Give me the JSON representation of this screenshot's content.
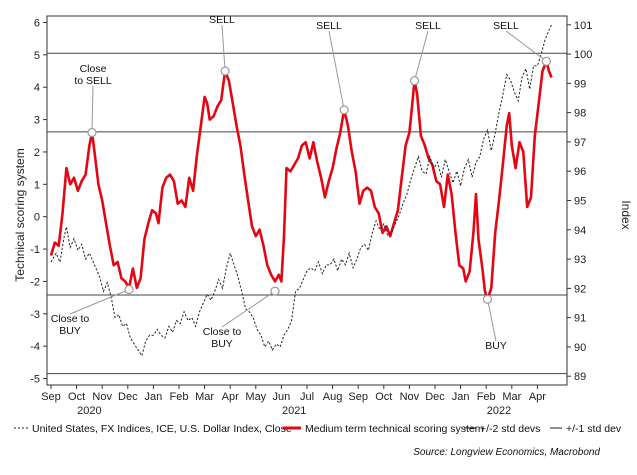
{
  "chart_data": {
    "type": "line",
    "y_left_label": "Technical scoring system",
    "y_right_label": "Index",
    "y_left_ticks": [
      "-5",
      "-4",
      "-3",
      "-2",
      "-1",
      "0",
      "1",
      "2",
      "3",
      "4",
      "5",
      "6"
    ],
    "y_right_ticks": [
      "89",
      "90",
      "91",
      "92",
      "93",
      "94",
      "95",
      "96",
      "97",
      "98",
      "99",
      "100",
      "101"
    ],
    "ylim_left": [
      -5.2,
      6.2
    ],
    "ylim_right": [
      88.7,
      101.3
    ],
    "x_month_labels": [
      "Sep",
      "Oct",
      "Nov",
      "Dec",
      "Jan",
      "Feb",
      "Mar",
      "Apr",
      "May",
      "Jun",
      "Jul",
      "Aug",
      "Sep",
      "Oct",
      "Nov",
      "Dec",
      "Jan",
      "Feb",
      "Mar",
      "Apr"
    ],
    "x_year_labels": [
      {
        "label": "2020",
        "month_index": 1.5
      },
      {
        "label": "2021",
        "month_index": 9.5
      },
      {
        "label": "2022",
        "month_index": 17.5
      }
    ],
    "hlines": [
      {
        "y": 5.05,
        "kind": "+2 std dev"
      },
      {
        "y": 2.62,
        "kind": "+1 std dev"
      },
      {
        "y": -2.42,
        "kind": "-1 std dev"
      },
      {
        "y": -4.85,
        "kind": "-2 std dev"
      }
    ],
    "series": [
      {
        "name": "Medium term technical scoring system",
        "color": "#e30613",
        "axis": "left",
        "points": [
          [
            0.0,
            -1.2
          ],
          [
            0.15,
            -0.8
          ],
          [
            0.3,
            -0.9
          ],
          [
            0.45,
            0.1
          ],
          [
            0.6,
            1.5
          ],
          [
            0.75,
            1.0
          ],
          [
            0.9,
            1.2
          ],
          [
            1.05,
            0.8
          ],
          [
            1.2,
            1.1
          ],
          [
            1.35,
            1.3
          ],
          [
            1.5,
            2.2
          ],
          [
            1.6,
            2.6
          ],
          [
            1.7,
            2.0
          ],
          [
            1.85,
            1.0
          ],
          [
            2.0,
            0.5
          ],
          [
            2.15,
            -0.2
          ],
          [
            2.3,
            -0.9
          ],
          [
            2.45,
            -1.5
          ],
          [
            2.6,
            -1.4
          ],
          [
            2.75,
            -1.9
          ],
          [
            2.9,
            -2.0
          ],
          [
            3.05,
            -2.2
          ],
          [
            3.2,
            -1.6
          ],
          [
            3.35,
            -2.2
          ],
          [
            3.5,
            -1.9
          ],
          [
            3.65,
            -0.7
          ],
          [
            3.8,
            -0.2
          ],
          [
            3.95,
            0.2
          ],
          [
            4.1,
            0.1
          ],
          [
            4.2,
            -0.2
          ],
          [
            4.35,
            0.9
          ],
          [
            4.5,
            1.2
          ],
          [
            4.65,
            1.3
          ],
          [
            4.8,
            1.1
          ],
          [
            4.95,
            0.4
          ],
          [
            5.1,
            0.5
          ],
          [
            5.25,
            0.3
          ],
          [
            5.4,
            1.2
          ],
          [
            5.55,
            0.8
          ],
          [
            5.7,
            1.9
          ],
          [
            5.85,
            2.8
          ],
          [
            6.0,
            3.7
          ],
          [
            6.1,
            3.5
          ],
          [
            6.2,
            3.0
          ],
          [
            6.35,
            3.1
          ],
          [
            6.5,
            3.4
          ],
          [
            6.65,
            3.6
          ],
          [
            6.8,
            4.5
          ],
          [
            6.95,
            4.2
          ],
          [
            7.1,
            3.5
          ],
          [
            7.25,
            2.8
          ],
          [
            7.4,
            2.2
          ],
          [
            7.55,
            1.3
          ],
          [
            7.7,
            0.5
          ],
          [
            7.85,
            -0.3
          ],
          [
            8.0,
            -0.6
          ],
          [
            8.15,
            -0.4
          ],
          [
            8.3,
            -0.9
          ],
          [
            8.45,
            -1.5
          ],
          [
            8.6,
            -1.8
          ],
          [
            8.75,
            -2.0
          ],
          [
            8.9,
            -1.8
          ],
          [
            9.0,
            -2.0
          ],
          [
            9.1,
            -0.6
          ],
          [
            9.2,
            1.5
          ],
          [
            9.35,
            1.4
          ],
          [
            9.5,
            1.6
          ],
          [
            9.65,
            1.8
          ],
          [
            9.8,
            2.2
          ],
          [
            9.95,
            2.3
          ],
          [
            10.1,
            1.8
          ],
          [
            10.25,
            2.3
          ],
          [
            10.4,
            1.7
          ],
          [
            10.55,
            1.2
          ],
          [
            10.7,
            0.6
          ],
          [
            10.85,
            1.1
          ],
          [
            11.0,
            1.5
          ],
          [
            11.15,
            2.1
          ],
          [
            11.3,
            2.6
          ],
          [
            11.45,
            3.3
          ],
          [
            11.6,
            2.8
          ],
          [
            11.75,
            2.0
          ],
          [
            11.9,
            1.4
          ],
          [
            12.05,
            0.4
          ],
          [
            12.2,
            0.8
          ],
          [
            12.35,
            0.9
          ],
          [
            12.5,
            0.8
          ],
          [
            12.65,
            0.3
          ],
          [
            12.8,
            0.1
          ],
          [
            12.95,
            -0.5
          ],
          [
            13.1,
            -0.3
          ],
          [
            13.25,
            -0.6
          ],
          [
            13.4,
            -0.2
          ],
          [
            13.55,
            0.2
          ],
          [
            13.7,
            1.2
          ],
          [
            13.85,
            2.2
          ],
          [
            14.0,
            2.6
          ],
          [
            14.1,
            3.4
          ],
          [
            14.2,
            4.2
          ],
          [
            14.3,
            3.8
          ],
          [
            14.45,
            2.5
          ],
          [
            14.6,
            2.2
          ],
          [
            14.75,
            1.8
          ],
          [
            14.9,
            1.6
          ],
          [
            15.05,
            1.1
          ],
          [
            15.2,
            1.0
          ],
          [
            15.35,
            0.3
          ],
          [
            15.5,
            1.3
          ],
          [
            15.65,
            0.7
          ],
          [
            15.8,
            -0.5
          ],
          [
            15.95,
            -1.5
          ],
          [
            16.1,
            -1.6
          ],
          [
            16.2,
            -2.0
          ],
          [
            16.35,
            -1.7
          ],
          [
            16.5,
            -0.5
          ],
          [
            16.6,
            0.7
          ],
          [
            16.7,
            -0.7
          ],
          [
            16.85,
            -1.6
          ],
          [
            16.95,
            -2.3
          ],
          [
            17.05,
            -2.55
          ],
          [
            17.2,
            -2.2
          ],
          [
            17.35,
            -0.5
          ],
          [
            17.5,
            0.5
          ],
          [
            17.65,
            1.6
          ],
          [
            17.8,
            2.8
          ],
          [
            17.9,
            3.2
          ],
          [
            18.0,
            2.2
          ],
          [
            18.15,
            1.5
          ],
          [
            18.3,
            2.3
          ],
          [
            18.45,
            2.0
          ],
          [
            18.6,
            0.3
          ],
          [
            18.75,
            0.6
          ],
          [
            18.9,
            2.5
          ],
          [
            19.05,
            3.5
          ],
          [
            19.2,
            4.5
          ],
          [
            19.35,
            4.8
          ],
          [
            19.45,
            4.5
          ],
          [
            19.55,
            4.3
          ]
        ]
      },
      {
        "name": "United States, FX Indices, ICE, U.S. Dollar Index, Close",
        "color": "#222222",
        "axis": "right",
        "points": [
          [
            0.0,
            92.9
          ],
          [
            0.2,
            93.2
          ],
          [
            0.35,
            92.9
          ],
          [
            0.5,
            93.7
          ],
          [
            0.6,
            94.1
          ],
          [
            0.75,
            93.4
          ],
          [
            0.9,
            93.7
          ],
          [
            1.05,
            93.3
          ],
          [
            1.2,
            93.5
          ],
          [
            1.35,
            93.0
          ],
          [
            1.5,
            93.2
          ],
          [
            1.7,
            92.8
          ],
          [
            1.9,
            92.4
          ],
          [
            2.05,
            91.9
          ],
          [
            2.2,
            92.2
          ],
          [
            2.35,
            91.7
          ],
          [
            2.5,
            91.0
          ],
          [
            2.65,
            91.1
          ],
          [
            2.8,
            90.7
          ],
          [
            2.95,
            90.8
          ],
          [
            3.1,
            90.3
          ],
          [
            3.25,
            90.1
          ],
          [
            3.4,
            89.9
          ],
          [
            3.55,
            89.7
          ],
          [
            3.7,
            90.2
          ],
          [
            3.85,
            90.4
          ],
          [
            4.0,
            90.4
          ],
          [
            4.15,
            90.6
          ],
          [
            4.3,
            90.4
          ],
          [
            4.45,
            90.3
          ],
          [
            4.6,
            90.7
          ],
          [
            4.75,
            90.5
          ],
          [
            4.9,
            90.9
          ],
          [
            5.05,
            90.8
          ],
          [
            5.2,
            91.2
          ],
          [
            5.35,
            90.9
          ],
          [
            5.5,
            91.0
          ],
          [
            5.65,
            90.7
          ],
          [
            5.8,
            91.2
          ],
          [
            5.95,
            91.5
          ],
          [
            6.1,
            91.8
          ],
          [
            6.25,
            91.6
          ],
          [
            6.4,
            91.9
          ],
          [
            6.55,
            92.3
          ],
          [
            6.7,
            92.0
          ],
          [
            6.85,
            92.7
          ],
          [
            7.0,
            93.2
          ],
          [
            7.15,
            92.8
          ],
          [
            7.3,
            92.4
          ],
          [
            7.45,
            91.9
          ],
          [
            7.6,
            91.3
          ],
          [
            7.75,
            91.2
          ],
          [
            7.9,
            91.0
          ],
          [
            8.05,
            90.6
          ],
          [
            8.2,
            90.4
          ],
          [
            8.35,
            90.0
          ],
          [
            8.5,
            90.2
          ],
          [
            8.65,
            89.9
          ],
          [
            8.8,
            90.1
          ],
          [
            8.95,
            90.0
          ],
          [
            9.1,
            90.4
          ],
          [
            9.25,
            90.6
          ],
          [
            9.4,
            90.9
          ],
          [
            9.55,
            91.9
          ],
          [
            9.7,
            92.0
          ],
          [
            9.85,
            92.3
          ],
          [
            10.0,
            92.6
          ],
          [
            10.15,
            92.7
          ],
          [
            10.3,
            92.6
          ],
          [
            10.45,
            92.9
          ],
          [
            10.6,
            92.5
          ],
          [
            10.75,
            92.8
          ],
          [
            10.9,
            92.8
          ],
          [
            11.05,
            93.0
          ],
          [
            11.2,
            92.6
          ],
          [
            11.35,
            93.0
          ],
          [
            11.5,
            92.8
          ],
          [
            11.65,
            93.2
          ],
          [
            11.8,
            92.7
          ],
          [
            11.95,
            93.0
          ],
          [
            12.1,
            93.4
          ],
          [
            12.25,
            93.5
          ],
          [
            12.4,
            93.3
          ],
          [
            12.55,
            93.9
          ],
          [
            12.7,
            94.3
          ],
          [
            12.85,
            94.0
          ],
          [
            13.0,
            94.2
          ],
          [
            13.15,
            93.8
          ],
          [
            13.3,
            93.9
          ],
          [
            13.45,
            94.2
          ],
          [
            13.6,
            94.5
          ],
          [
            13.75,
            94.9
          ],
          [
            13.9,
            95.2
          ],
          [
            14.05,
            95.7
          ],
          [
            14.2,
            96.1
          ],
          [
            14.35,
            96.5
          ],
          [
            14.5,
            96.0
          ],
          [
            14.65,
            95.9
          ],
          [
            14.8,
            96.5
          ],
          [
            14.95,
            96.1
          ],
          [
            15.1,
            96.3
          ],
          [
            15.25,
            95.8
          ],
          [
            15.4,
            96.4
          ],
          [
            15.55,
            96.0
          ],
          [
            15.7,
            95.6
          ],
          [
            15.85,
            96.0
          ],
          [
            16.0,
            95.5
          ],
          [
            16.15,
            96.1
          ],
          [
            16.3,
            96.4
          ],
          [
            16.45,
            95.8
          ],
          [
            16.6,
            96.3
          ],
          [
            16.75,
            96.5
          ],
          [
            16.9,
            97.1
          ],
          [
            17.05,
            97.4
          ],
          [
            17.2,
            96.7
          ],
          [
            17.35,
            97.3
          ],
          [
            17.5,
            98.0
          ],
          [
            17.65,
            98.6
          ],
          [
            17.8,
            99.3
          ],
          [
            17.95,
            99.1
          ],
          [
            18.1,
            98.7
          ],
          [
            18.25,
            98.4
          ],
          [
            18.4,
            99.2
          ],
          [
            18.55,
            99.5
          ],
          [
            18.7,
            98.8
          ],
          [
            18.85,
            99.6
          ],
          [
            19.0,
            99.6
          ],
          [
            19.15,
            100.0
          ],
          [
            19.3,
            100.5
          ],
          [
            19.45,
            100.8
          ],
          [
            19.55,
            101.0
          ]
        ]
      }
    ],
    "annotations": [
      {
        "lines": [
          "Close",
          "to SELL"
        ],
        "x": 1.6,
        "y": 2.6
      },
      {
        "lines": [
          "SELL"
        ],
        "x": 6.8,
        "y": 4.5
      },
      {
        "lines": [
          "SELL"
        ],
        "x": 11.45,
        "y": 3.3
      },
      {
        "lines": [
          "SELL"
        ],
        "x": 14.2,
        "y": 4.2
      },
      {
        "lines": [
          "SELL"
        ],
        "x": 19.35,
        "y": 4.8
      },
      {
        "lines": [
          "Close to",
          "BUY"
        ],
        "x": 3.05,
        "y": -2.25
      },
      {
        "lines": [
          "Close to",
          "BUY"
        ],
        "x": 8.75,
        "y": -2.3
      },
      {
        "lines": [
          "BUY"
        ],
        "x": 17.05,
        "y": -2.55
      }
    ],
    "legend": [
      {
        "label": "United States, FX Indices, ICE, U.S. Dollar Index, Close",
        "style": "dashed",
        "color": "#222222"
      },
      {
        "label": "Medium term technical scoring system",
        "style": "thick",
        "color": "#e30613"
      },
      {
        "label": "+/-2 std devs",
        "style": "thin",
        "color": "#222222"
      },
      {
        "label": "+/-1 std dev",
        "style": "thin",
        "color": "#222222"
      }
    ],
    "source": "Source: Longview Economics, Macrobond"
  }
}
